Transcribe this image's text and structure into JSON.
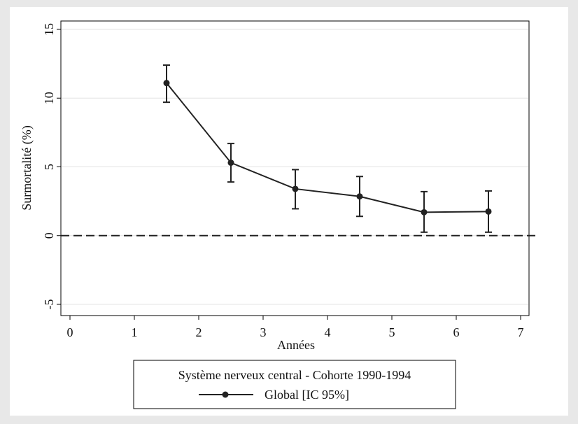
{
  "chart_data": {
    "type": "line",
    "title": "",
    "xlabel": "Années",
    "ylabel": "Surmortalité (%)",
    "xlim": [
      0,
      7
    ],
    "ylim": [
      -5,
      15
    ],
    "xticks": [
      "0",
      "1",
      "2",
      "3",
      "4",
      "5",
      "6",
      "7"
    ],
    "yticks": [
      "-5",
      "0",
      "5",
      "10",
      "15"
    ],
    "grid": true,
    "reference_line": {
      "y": 0,
      "style": "dashed"
    },
    "legend": {
      "title": "Système nerveux central - Cohorte 1990-1994",
      "placement": "bottom"
    },
    "series": [
      {
        "name": "Global [IC 95%]",
        "color": "#222222",
        "x": [
          1.5,
          2.5,
          3.5,
          4.5,
          5.5,
          6.5
        ],
        "y": [
          11.1,
          5.3,
          3.4,
          2.85,
          1.7,
          1.75
        ],
        "ci_lower": [
          9.7,
          3.9,
          1.95,
          1.4,
          0.25,
          0.25
        ],
        "ci_upper": [
          12.4,
          6.7,
          4.8,
          4.3,
          3.2,
          3.25
        ]
      }
    ]
  }
}
